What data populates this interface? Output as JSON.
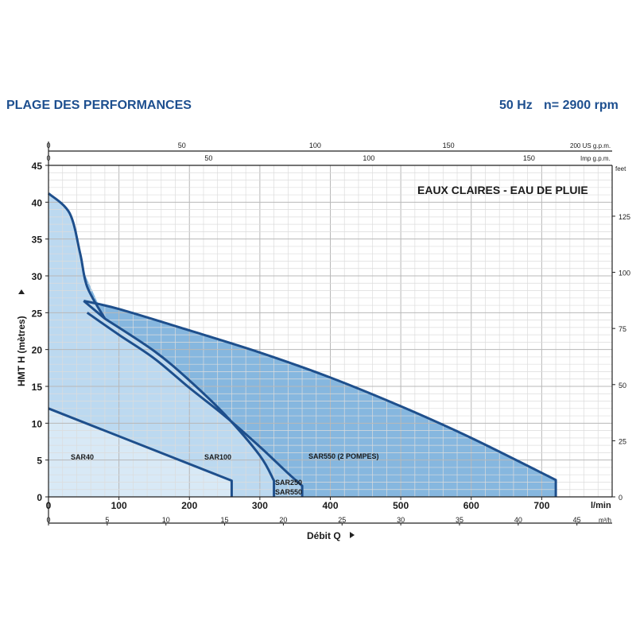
{
  "header": {
    "title": "PLAGE DES PERFORMANCES",
    "frequency": "50 Hz",
    "speed": "n= 2900 rpm"
  },
  "colors": {
    "accent": "#1d4f8f",
    "curve": "#1e4f8c",
    "fill_light": "#d8e9f6",
    "fill_mid": "#bcd9f0",
    "fill_dark": "#86b7df",
    "grid": "#c9c9c9"
  },
  "chart_data": {
    "type": "area",
    "title": "EAUX CLAIRES - EAU DE PLUIE",
    "xlabel": "Débit Q",
    "ylabel": "HMT H (mètres)",
    "grid": true,
    "x_unit": "l/min",
    "x_unit_m3": "m³/h",
    "y_unit_right": "feet",
    "us_gpm_unit": "200 US g.p.m.",
    "imp_gpm_unit": "Imp g.p.m.",
    "xlim": [
      0,
      800
    ],
    "ylim": [
      0,
      45
    ],
    "x_ticks": [
      "0",
      "100",
      "200",
      "300",
      "400",
      "500",
      "600",
      "700"
    ],
    "y_ticks": [
      "0",
      "5",
      "10",
      "15",
      "20",
      "25",
      "30",
      "35",
      "40",
      "45"
    ],
    "m3h_ticks": [
      "0",
      "5",
      "10",
      "15",
      "20",
      "25",
      "30",
      "35",
      "40",
      "45"
    ],
    "feet_ticks": [
      "0",
      "25",
      "50",
      "75",
      "100",
      "125"
    ],
    "us_gpm_ticks": [
      "0",
      "50",
      "100",
      "150"
    ],
    "imp_gpm_ticks": [
      "0",
      "50",
      "100",
      "150"
    ],
    "series": [
      {
        "name": "SAR40",
        "x": [
          0,
          260,
          260
        ],
        "y": [
          12,
          2.2,
          0
        ]
      },
      {
        "name": "SAR100",
        "x": [
          0,
          30,
          45,
          55,
          80,
          150,
          200,
          250,
          300,
          320,
          320
        ],
        "y": [
          41.2,
          38.5,
          33,
          28.5,
          24.2,
          19.8,
          15.8,
          11.2,
          5.6,
          2.2,
          0
        ]
      },
      {
        "name": "SAR250",
        "x": [
          55,
          100,
          150,
          200,
          250,
          300,
          340,
          360,
          360
        ],
        "y": [
          25,
          22,
          18.8,
          14.8,
          11,
          6.8,
          3.2,
          1.5,
          0
        ]
      },
      {
        "name": "SAR550",
        "x": [
          55,
          100,
          150,
          200,
          250,
          300,
          340,
          360,
          360
        ],
        "y": [
          25,
          22,
          18.8,
          14.8,
          11,
          6.8,
          3.2,
          1.5,
          0
        ]
      },
      {
        "name": "SAR550 (2 POMPES)",
        "x": [
          50,
          100,
          200,
          300,
          400,
          500,
          600,
          720,
          720
        ],
        "y": [
          26.6,
          25.5,
          22.6,
          19.6,
          16.2,
          12.3,
          8,
          2.3,
          0
        ]
      }
    ]
  }
}
